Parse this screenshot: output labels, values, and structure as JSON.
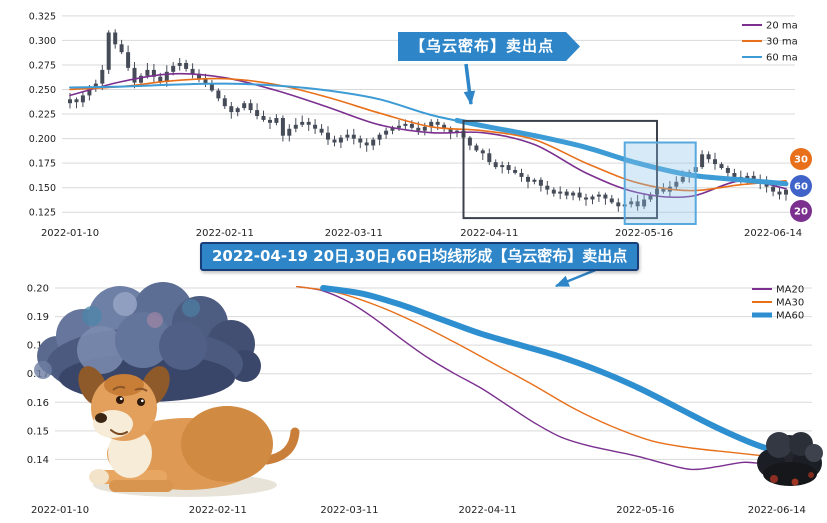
{
  "page": {
    "background": "#ffffff"
  },
  "colors": {
    "ma20": "#7b2f8f",
    "ma30": "#e8701a",
    "ma60": "#3d9bd5",
    "ma60_bottom": "#2e8fd0",
    "candle": "#454b57",
    "grid": "#d9d9d9",
    "axis_text": "#222222",
    "banner_bg": "#2e86c9",
    "banner_border": "#173e78"
  },
  "callouts": {
    "top": {
      "text": "【乌云密布】卖出点"
    },
    "mid": {
      "text": "2022-04-19 20日,30日,60日均线形成【乌云密布】卖出点"
    }
  },
  "chart_data": [
    {
      "id": "price-candlestick",
      "type": "candlestick",
      "title": "",
      "ylim": [
        0.112,
        0.333
      ],
      "ytick_decimals": 3,
      "yticks": [
        0.325,
        0.3,
        0.275,
        0.25,
        0.225,
        0.2,
        0.175,
        0.15,
        0.125
      ],
      "xticks": [
        {
          "idx": 0,
          "label": "2022-01-10"
        },
        {
          "idx": 24,
          "label": "2022-02-11"
        },
        {
          "idx": 44,
          "label": "2022-03-11"
        },
        {
          "idx": 65,
          "label": "2022-04-11"
        },
        {
          "idx": 89,
          "label": "2022-05-16"
        },
        {
          "idx": 109,
          "label": "2022-06-14"
        }
      ],
      "closes": [
        0.24,
        0.237,
        0.244,
        0.251,
        0.256,
        0.27,
        0.308,
        0.296,
        0.288,
        0.272,
        0.257,
        0.264,
        0.27,
        0.263,
        0.258,
        0.268,
        0.274,
        0.277,
        0.271,
        0.266,
        0.261,
        0.256,
        0.249,
        0.241,
        0.233,
        0.227,
        0.231,
        0.236,
        0.229,
        0.223,
        0.219,
        0.216,
        0.221,
        0.203,
        0.21,
        0.214,
        0.217,
        0.214,
        0.21,
        0.206,
        0.199,
        0.196,
        0.201,
        0.204,
        0.2,
        0.196,
        0.193,
        0.199,
        0.204,
        0.208,
        0.211,
        0.213,
        0.215,
        0.211,
        0.208,
        0.212,
        0.217,
        0.214,
        0.21,
        0.206,
        0.208,
        0.201,
        0.193,
        0.188,
        0.185,
        0.176,
        0.171,
        0.173,
        0.168,
        0.165,
        0.161,
        0.156,
        0.158,
        0.152,
        0.148,
        0.144,
        0.146,
        0.142,
        0.145,
        0.14,
        0.138,
        0.141,
        0.143,
        0.139,
        0.135,
        0.131,
        0.133,
        0.136,
        0.131,
        0.138,
        0.143,
        0.149,
        0.146,
        0.151,
        0.156,
        0.161,
        0.166,
        0.171,
        0.184,
        0.179,
        0.174,
        0.17,
        0.165,
        0.161,
        0.158,
        0.162,
        0.158,
        0.155,
        0.151,
        0.146,
        0.143,
        0.148
      ],
      "series": [
        {
          "name": "20 ma",
          "color_key": "ma20",
          "width": 1.6,
          "idx": [
            0,
            8,
            16,
            24,
            32,
            40,
            48,
            56,
            64,
            72,
            80,
            88,
            96,
            104,
            111
          ],
          "values": [
            0.244,
            0.258,
            0.266,
            0.262,
            0.249,
            0.232,
            0.214,
            0.206,
            0.206,
            0.194,
            0.165,
            0.145,
            0.141,
            0.157,
            0.149
          ]
        },
        {
          "name": "30 ma",
          "color_key": "ma30",
          "width": 1.6,
          "idx": [
            0,
            8,
            16,
            24,
            32,
            40,
            48,
            56,
            64,
            72,
            80,
            88,
            96,
            104,
            111
          ],
          "values": [
            0.25,
            0.253,
            0.259,
            0.261,
            0.255,
            0.242,
            0.226,
            0.212,
            0.208,
            0.199,
            0.175,
            0.155,
            0.147,
            0.153,
            0.157
          ]
        },
        {
          "name": "60 ma",
          "color_key": "ma60",
          "width": 2,
          "idx": [
            0,
            8,
            16,
            24,
            32,
            40,
            48,
            56,
            64,
            72,
            80,
            88,
            96,
            104,
            111
          ],
          "values": [
            0.252,
            0.253,
            0.255,
            0.256,
            0.254,
            0.249,
            0.24,
            0.224,
            0.213,
            0.203,
            0.191,
            0.175,
            0.163,
            0.158,
            0.154
          ],
          "thick": {
            "width": 5,
            "idx": [
              60,
              64,
              72,
              80,
              88,
              96,
              104,
              111
            ],
            "values": [
              0.2185,
              0.213,
              0.203,
              0.191,
              0.175,
              0.163,
              0.158,
              0.154
            ]
          }
        }
      ],
      "legend": [
        {
          "label": "20 ma",
          "color": "#7b2f8f",
          "swatch_width": 2
        },
        {
          "label": "30 ma",
          "color": "#e8701a",
          "swatch_width": 2
        },
        {
          "label": "60 ma",
          "color": "#3d9bd5",
          "swatch_width": 2
        }
      ],
      "annotations": {
        "boxes": [
          {
            "name": "sell-zone-box",
            "idx1": 61,
            "idx2": 91,
            "v1": 0.119,
            "v2": 0.218,
            "stroke": "#3b414b",
            "fill": "none",
            "width": 2
          },
          {
            "name": "rebound-highlight-box",
            "idx1": 86,
            "idx2": 97,
            "v1": 0.113,
            "v2": 0.196,
            "stroke": "#57a8dd",
            "fill": "rgba(140,195,235,0.35)",
            "width": 2
          }
        ],
        "badges": [
          {
            "label": "30",
            "color": "#e8701a"
          },
          {
            "label": "60",
            "color": "#3f63c8"
          },
          {
            "label": "20",
            "color": "#7b2f8f"
          }
        ]
      }
    },
    {
      "id": "ma-detail-lines",
      "type": "line",
      "title": "",
      "ylim": [
        0.1265,
        0.2035
      ],
      "ytick_decimals": 2,
      "yticks": [
        0.2,
        0.19,
        0.18,
        0.17,
        0.16,
        0.15,
        0.14
      ],
      "xticks": [
        {
          "idx": 0,
          "label": "2022-01-10"
        },
        {
          "idx": 24,
          "label": "2022-02-11"
        },
        {
          "idx": 44,
          "label": "2022-03-11"
        },
        {
          "idx": 65,
          "label": "2022-04-11"
        },
        {
          "idx": 89,
          "label": "2022-05-16"
        },
        {
          "idx": 109,
          "label": "2022-06-14"
        }
      ],
      "series": [
        {
          "name": "MA20",
          "color_key": "ma20",
          "width": 1.4,
          "idx": [
            36,
            40,
            44,
            48,
            52,
            56,
            60,
            64,
            68,
            72,
            76,
            80,
            84,
            88,
            92,
            96,
            100,
            104,
            108,
            111
          ],
          "values": [
            0.2005,
            0.199,
            0.195,
            0.189,
            0.182,
            0.1755,
            0.17,
            0.165,
            0.159,
            0.153,
            0.148,
            0.145,
            0.143,
            0.141,
            0.1385,
            0.1365,
            0.1375,
            0.139,
            0.1385,
            0.141
          ]
        },
        {
          "name": "MA30",
          "color_key": "ma30",
          "width": 1.4,
          "idx": [
            36,
            42,
            48,
            54,
            60,
            66,
            72,
            78,
            84,
            90,
            96,
            102,
            108,
            111
          ],
          "values": [
            0.2005,
            0.1985,
            0.194,
            0.188,
            0.181,
            0.1735,
            0.166,
            0.158,
            0.1515,
            0.1465,
            0.144,
            0.1425,
            0.141,
            0.1405
          ]
        },
        {
          "name": "MA60",
          "color_key": "ma60_bottom",
          "width": 6,
          "idx": [
            40,
            46,
            52,
            58,
            64,
            70,
            76,
            82,
            88,
            94,
            100,
            106,
            111
          ],
          "values": [
            0.2,
            0.198,
            0.194,
            0.189,
            0.184,
            0.18,
            0.176,
            0.171,
            0.165,
            0.158,
            0.151,
            0.145,
            0.1415
          ]
        }
      ],
      "legend": [
        {
          "label": "MA20",
          "color": "#7b2f8f",
          "swatch_width": 2
        },
        {
          "label": "MA30",
          "color": "#e8701a",
          "swatch_width": 2
        },
        {
          "label": "MA60",
          "color": "#2e8fd0",
          "swatch_width": 5
        }
      ]
    }
  ]
}
